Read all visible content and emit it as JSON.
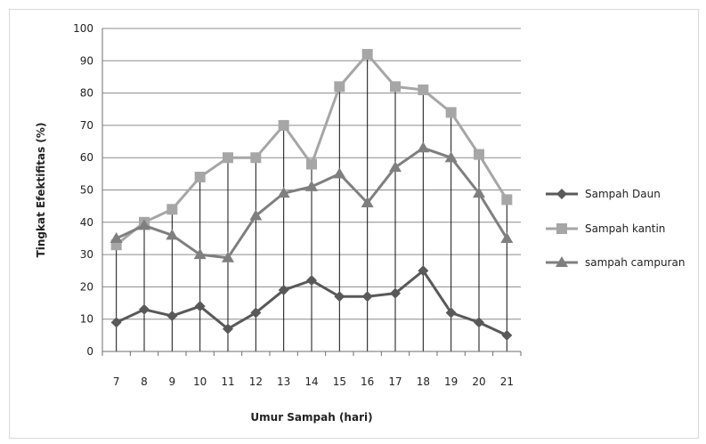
{
  "chart_data": {
    "type": "line",
    "title": "",
    "xlabel": "Umur Sampah (hari)",
    "ylabel": "Tingkat Efektifitas (%)",
    "x": [
      7,
      8,
      9,
      10,
      11,
      12,
      13,
      14,
      15,
      16,
      17,
      18,
      19,
      20,
      21
    ],
    "ylim": [
      0,
      100
    ],
    "yticks": [
      0,
      10,
      20,
      30,
      40,
      50,
      60,
      70,
      80,
      90,
      100
    ],
    "grid": "horizontal major gridlines",
    "legend_position": "right",
    "drop_lines": true,
    "series": [
      {
        "name": "Sampah Daun",
        "marker": "diamond",
        "color": "#595959",
        "values": [
          9,
          13,
          11,
          14,
          7,
          12,
          19,
          22,
          17,
          17,
          18,
          25,
          12,
          9,
          5
        ]
      },
      {
        "name": "Sampah kantin",
        "marker": "square",
        "color": "#a6a6a6",
        "values": [
          33,
          40,
          44,
          54,
          60,
          60,
          70,
          58,
          82,
          92,
          82,
          81,
          74,
          61,
          47
        ]
      },
      {
        "name": "sampah campuran",
        "marker": "triangle",
        "color": "#7f7f7f",
        "values": [
          35,
          39,
          36,
          30,
          29,
          42,
          49,
          51,
          55,
          46,
          57,
          63,
          60,
          49,
          35
        ]
      }
    ]
  }
}
